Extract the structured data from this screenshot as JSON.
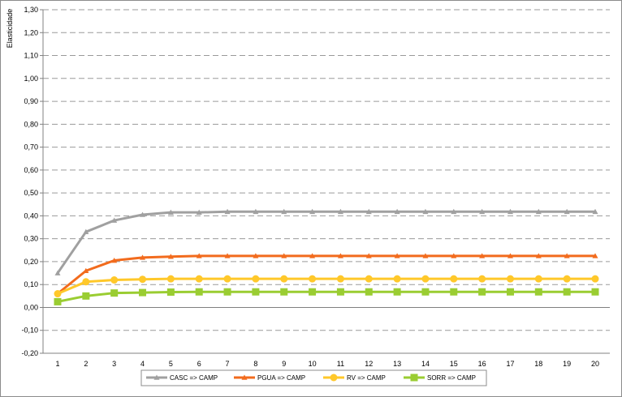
{
  "chart_data": {
    "type": "line",
    "title": "",
    "xlabel": "",
    "ylabel": "Elasticidade",
    "ylim": [
      -0.2,
      1.3
    ],
    "ystep": 0.1,
    "y_tick_labels": [
      "-0,20",
      "-0,10",
      "0,00",
      "0,10",
      "0,20",
      "0,30",
      "0,40",
      "0,50",
      "0,60",
      "0,70",
      "0,80",
      "0,90",
      "1,00",
      "1,10",
      "1,20",
      "1,30"
    ],
    "grid": "horizontal dashed",
    "legend_position": "bottom",
    "categories": [
      "1",
      "2",
      "3",
      "4",
      "5",
      "6",
      "7",
      "8",
      "9",
      "10",
      "11",
      "12",
      "13",
      "14",
      "15",
      "16",
      "17",
      "18",
      "19",
      "20"
    ],
    "series": [
      {
        "name": "CASC => CAMP",
        "color": "#a0a0a0",
        "marker": "triangle",
        "values": [
          0.15,
          0.33,
          0.38,
          0.405,
          0.415,
          0.415,
          0.418,
          0.418,
          0.418,
          0.418,
          0.418,
          0.418,
          0.418,
          0.418,
          0.418,
          0.418,
          0.418,
          0.418,
          0.418,
          0.418
        ]
      },
      {
        "name": "PGUA => CAMP",
        "color": "#f26b1d",
        "marker": "triangle",
        "values": [
          0.06,
          0.16,
          0.205,
          0.218,
          0.222,
          0.225,
          0.225,
          0.225,
          0.225,
          0.225,
          0.225,
          0.225,
          0.225,
          0.225,
          0.225,
          0.225,
          0.225,
          0.225,
          0.225,
          0.225
        ]
      },
      {
        "name": "RV => CAMP",
        "color": "#ffc82a",
        "marker": "circle",
        "values": [
          0.06,
          0.112,
          0.12,
          0.123,
          0.125,
          0.125,
          0.125,
          0.125,
          0.125,
          0.125,
          0.125,
          0.125,
          0.125,
          0.125,
          0.125,
          0.125,
          0.125,
          0.125,
          0.125,
          0.125
        ]
      },
      {
        "name": "SORR => CAMP",
        "color": "#9acd32",
        "marker": "square",
        "values": [
          0.025,
          0.05,
          0.063,
          0.065,
          0.067,
          0.068,
          0.068,
          0.068,
          0.068,
          0.068,
          0.068,
          0.068,
          0.068,
          0.068,
          0.068,
          0.068,
          0.068,
          0.068,
          0.068,
          0.068
        ]
      }
    ]
  }
}
